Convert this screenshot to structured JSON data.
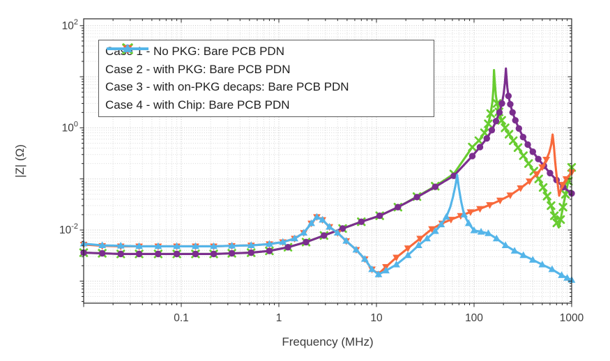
{
  "figure": {
    "background": "#ffffff",
    "axis_color": "#262626",
    "text_color": "#3c3c3c",
    "grid_major_color": "#c2c2c2",
    "grid_minor_color": "#d9d9d9"
  },
  "chart_data": {
    "type": "line",
    "title": "",
    "xlabel": "Frequency (MHz)",
    "ylabel": "|Z| (Ω)",
    "x_scale": "log",
    "y_scale": "log",
    "xlim": [
      0.01,
      1000
    ],
    "ylim": [
      0.00037,
      136
    ],
    "grid": "on",
    "legend_position": "northwest",
    "x_ticks": [
      {
        "value": 0.1,
        "label": "0.1"
      },
      {
        "value": 1,
        "label": "1"
      },
      {
        "value": 10,
        "label": "10"
      },
      {
        "value": 100,
        "label": "100"
      },
      {
        "value": 1000,
        "label": "1000"
      }
    ],
    "y_ticks": [
      {
        "value": 100,
        "base": "10",
        "exp": "2"
      },
      {
        "value": 1,
        "base": "10",
        "exp": "0"
      },
      {
        "value": 0.01,
        "base": "10",
        "exp": "-2"
      }
    ],
    "draw_order": [
      1,
      0,
      2,
      3
    ],
    "series": [
      {
        "label": "Case 1 - No PKG: Bare PCB PDN",
        "color": "#7B2E8E",
        "marker": "circle",
        "points": [
          [
            0.01,
            0.0036
          ],
          [
            0.0155,
            0.0035
          ],
          [
            0.024,
            0.0034
          ],
          [
            0.037,
            0.0034
          ],
          [
            0.058,
            0.0034
          ],
          [
            0.09,
            0.0034
          ],
          [
            0.14,
            0.0034
          ],
          [
            0.215,
            0.0034
          ],
          [
            0.33,
            0.0035
          ],
          [
            0.52,
            0.0036
          ],
          [
            0.8,
            0.0039
          ],
          [
            1.24,
            0.0046
          ],
          [
            1.9,
            0.0058
          ],
          [
            2.9,
            0.0078
          ],
          [
            4.5,
            0.0107
          ],
          [
            7.0,
            0.0145
          ],
          [
            10.8,
            0.019
          ],
          [
            16.6,
            0.028
          ],
          [
            26,
            0.044
          ],
          [
            40,
            0.07
          ],
          [
            62,
            0.115
          ],
          [
            96,
            0.28
          ],
          [
            115,
            0.42
          ],
          [
            135,
            0.62
          ],
          [
            152,
            0.9
          ],
          [
            168,
            1.35
          ],
          [
            182,
            2.0
          ],
          [
            193,
            3.0
          ],
          [
            201,
            4.6,
            0
          ],
          [
            207,
            7.5,
            0
          ],
          [
            210,
            11,
            0
          ],
          [
            212,
            14.5,
            0
          ],
          [
            215,
            10,
            0
          ],
          [
            219,
            6.2,
            0
          ],
          [
            225,
            4.2
          ],
          [
            235,
            2.9
          ],
          [
            248,
            2.0
          ],
          [
            265,
            1.4
          ],
          [
            288,
            0.97
          ],
          [
            318,
            0.66
          ],
          [
            355,
            0.47
          ],
          [
            400,
            0.34
          ],
          [
            455,
            0.245
          ],
          [
            520,
            0.18
          ],
          [
            600,
            0.13
          ],
          [
            700,
            0.095
          ],
          [
            820,
            0.069
          ],
          [
            1000,
            0.052
          ]
        ]
      },
      {
        "label": "Case 2 - with PKG: Bare PCB PDN",
        "color": "#68CC30",
        "marker": "x",
        "points": [
          [
            0.01,
            0.0036
          ],
          [
            0.0155,
            0.0035
          ],
          [
            0.024,
            0.0034
          ],
          [
            0.037,
            0.0034
          ],
          [
            0.058,
            0.0034
          ],
          [
            0.09,
            0.0034
          ],
          [
            0.14,
            0.0034
          ],
          [
            0.215,
            0.0034
          ],
          [
            0.33,
            0.0035
          ],
          [
            0.52,
            0.0036
          ],
          [
            0.8,
            0.0039
          ],
          [
            1.24,
            0.0046
          ],
          [
            1.9,
            0.0058
          ],
          [
            2.9,
            0.0078
          ],
          [
            4.5,
            0.0107
          ],
          [
            7.0,
            0.0145
          ],
          [
            10.8,
            0.019
          ],
          [
            16.6,
            0.028
          ],
          [
            26,
            0.045
          ],
          [
            40,
            0.072
          ],
          [
            62,
            0.125
          ],
          [
            96,
            0.42
          ],
          [
            112,
            0.56
          ],
          [
            128,
            0.8
          ],
          [
            140,
            1.2
          ],
          [
            148,
            1.9
          ],
          [
            154,
            3.2,
            0
          ],
          [
            158,
            6.0,
            0
          ],
          [
            160,
            13.5,
            0
          ],
          [
            163,
            8.0,
            0
          ],
          [
            167,
            4.4,
            0
          ],
          [
            172,
            3.0
          ],
          [
            180,
            2.05
          ],
          [
            192,
            1.4
          ],
          [
            208,
            1.0
          ],
          [
            228,
            0.75
          ],
          [
            252,
            0.56
          ],
          [
            282,
            0.41
          ],
          [
            320,
            0.285
          ],
          [
            362,
            0.2
          ],
          [
            410,
            0.142
          ],
          [
            460,
            0.1
          ],
          [
            510,
            0.068
          ],
          [
            560,
            0.046
          ],
          [
            615,
            0.03
          ],
          [
            665,
            0.019
          ],
          [
            705,
            0.0138
          ],
          [
            738,
            0.0112,
            0
          ],
          [
            770,
            0.016
          ],
          [
            815,
            0.028
          ],
          [
            865,
            0.05
          ],
          [
            925,
            0.09
          ],
          [
            1000,
            0.168
          ]
        ]
      },
      {
        "label": "Case 3 - with on-PKG decaps: Bare PCB PDN",
        "color": "#F8693B",
        "marker": "triangle-down",
        "points": [
          [
            0.01,
            0.0052
          ],
          [
            0.0155,
            0.0049
          ],
          [
            0.024,
            0.0048
          ],
          [
            0.037,
            0.0048
          ],
          [
            0.058,
            0.0048
          ],
          [
            0.09,
            0.0048
          ],
          [
            0.14,
            0.0048
          ],
          [
            0.215,
            0.0048
          ],
          [
            0.33,
            0.0049
          ],
          [
            0.52,
            0.005
          ],
          [
            0.8,
            0.0053
          ],
          [
            1.1,
            0.0058
          ],
          [
            1.45,
            0.0068
          ],
          [
            1.8,
            0.0088
          ],
          [
            2.15,
            0.0135
          ],
          [
            2.45,
            0.018
          ],
          [
            2.8,
            0.0158
          ],
          [
            3.3,
            0.0115
          ],
          [
            4.0,
            0.0088
          ],
          [
            4.9,
            0.0061
          ],
          [
            6.2,
            0.0041
          ],
          [
            7.6,
            0.0027
          ],
          [
            9.0,
            0.0017
          ],
          [
            10.5,
            0.00138
          ],
          [
            12.5,
            0.0019
          ],
          [
            16,
            0.0029
          ],
          [
            21,
            0.0044
          ],
          [
            28,
            0.0068
          ],
          [
            37,
            0.0105
          ],
          [
            47,
            0.0135
          ],
          [
            58,
            0.016
          ],
          [
            73,
            0.019
          ],
          [
            92,
            0.0225
          ],
          [
            115,
            0.026
          ],
          [
            145,
            0.031
          ],
          [
            185,
            0.038
          ],
          [
            235,
            0.048
          ],
          [
            300,
            0.066
          ],
          [
            370,
            0.09
          ],
          [
            440,
            0.125
          ],
          [
            500,
            0.17
          ],
          [
            550,
            0.24
          ],
          [
            590,
            0.33,
            0
          ],
          [
            620,
            0.48,
            0
          ],
          [
            638,
            0.74,
            0
          ],
          [
            658,
            0.43,
            0
          ],
          [
            678,
            0.21,
            0
          ],
          [
            700,
            0.12,
            0
          ],
          [
            722,
            0.075,
            0
          ],
          [
            745,
            0.047,
            0
          ],
          [
            772,
            0.06,
            0
          ],
          [
            810,
            0.077
          ],
          [
            880,
            0.1
          ],
          [
            1000,
            0.135
          ]
        ]
      },
      {
        "label": "Case 4 - with Chip: Bare PCB PDN",
        "color": "#54B5E9",
        "marker": "triangle-up",
        "points": [
          [
            0.01,
            0.0054
          ],
          [
            0.0155,
            0.005
          ],
          [
            0.024,
            0.0049
          ],
          [
            0.037,
            0.0048
          ],
          [
            0.058,
            0.0048
          ],
          [
            0.09,
            0.0048
          ],
          [
            0.14,
            0.0048
          ],
          [
            0.215,
            0.0048
          ],
          [
            0.33,
            0.0049
          ],
          [
            0.52,
            0.005
          ],
          [
            0.8,
            0.0053
          ],
          [
            1.1,
            0.0058
          ],
          [
            1.45,
            0.0068
          ],
          [
            1.8,
            0.0088
          ],
          [
            2.15,
            0.0135
          ],
          [
            2.45,
            0.018
          ],
          [
            2.8,
            0.0158
          ],
          [
            3.3,
            0.0115
          ],
          [
            4.0,
            0.0088
          ],
          [
            4.9,
            0.0061
          ],
          [
            6.2,
            0.0041
          ],
          [
            7.6,
            0.0027
          ],
          [
            9.0,
            0.0017
          ],
          [
            10.5,
            0.00135
          ],
          [
            12.5,
            0.0016
          ],
          [
            16,
            0.0021
          ],
          [
            21,
            0.0032
          ],
          [
            27,
            0.005
          ],
          [
            33,
            0.0068
          ],
          [
            40,
            0.0095
          ],
          [
            46,
            0.0128
          ],
          [
            52,
            0.018
          ],
          [
            57,
            0.028,
            0
          ],
          [
            61,
            0.045,
            0
          ],
          [
            65,
            0.08,
            0
          ],
          [
            67,
            0.12,
            0
          ],
          [
            70,
            0.065,
            0
          ],
          [
            74,
            0.035,
            0
          ],
          [
            79,
            0.02
          ],
          [
            88,
            0.0135
          ],
          [
            100,
            0.0098
          ],
          [
            118,
            0.0092
          ],
          [
            140,
            0.0086
          ],
          [
            170,
            0.0068
          ],
          [
            210,
            0.005
          ],
          [
            260,
            0.0039
          ],
          [
            320,
            0.0032
          ],
          [
            400,
            0.0026
          ],
          [
            500,
            0.0021
          ],
          [
            630,
            0.0017
          ],
          [
            790,
            0.0013
          ],
          [
            900,
            0.00115
          ],
          [
            1000,
            0.00105
          ]
        ]
      }
    ]
  }
}
